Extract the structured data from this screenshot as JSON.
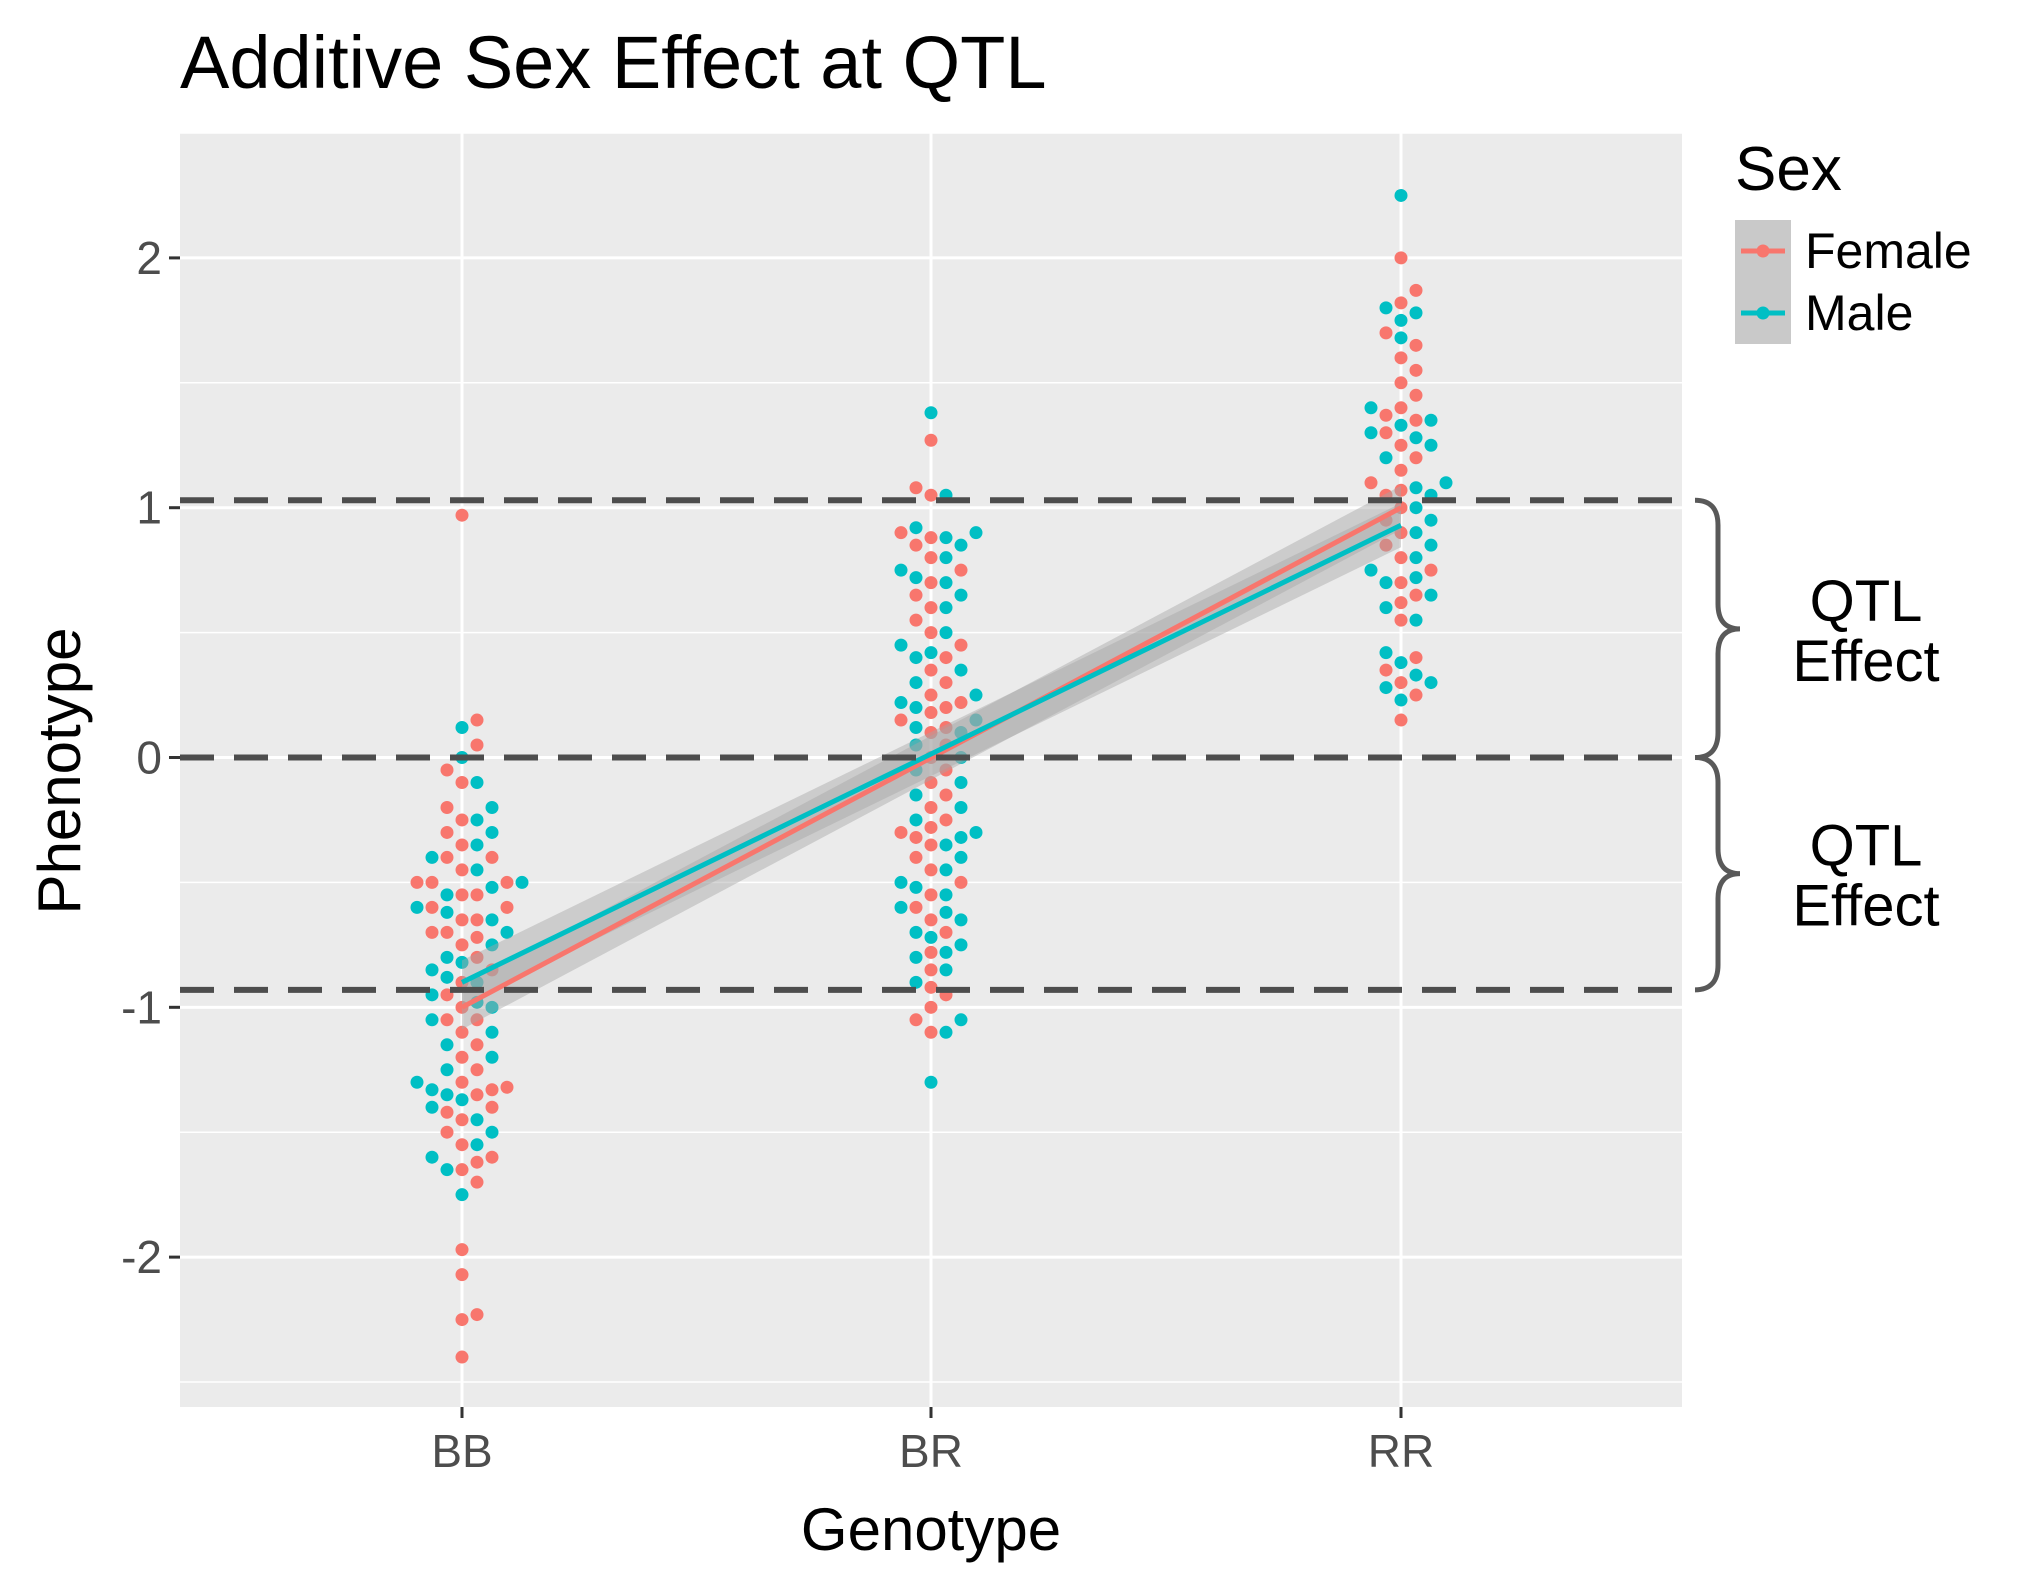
{
  "colors": {
    "female": "#F8766D",
    "male": "#00BFC4",
    "panel": "#EBEBEB",
    "grid": "#FFFFFF",
    "dashed": "#4D4D4D",
    "bracket": "#595959",
    "ci_band": "#A6A6A6"
  },
  "chart_data": {
    "type": "scatter",
    "title": "Additive Sex Effect at QTL",
    "xlabel": "Genotype",
    "ylabel": "Phenotype",
    "categories": [
      "BB",
      "BR",
      "RR"
    ],
    "ylim": [
      -2.6,
      2.5
    ],
    "yticks": [
      -2,
      -1,
      0,
      1,
      2
    ],
    "grid": true,
    "legend": {
      "title": "Sex",
      "placement": "right",
      "entries": [
        "Female",
        "Male"
      ]
    },
    "series": [
      {
        "name": "Female",
        "color_key": "female",
        "points": {
          "BB": [
            0.97,
            0.15,
            0.05,
            -0.05,
            -0.1,
            -0.2,
            -0.25,
            -0.3,
            -0.35,
            -0.4,
            -0.4,
            -0.45,
            -0.5,
            -0.5,
            -0.5,
            -0.55,
            -0.55,
            -0.6,
            -0.6,
            -0.65,
            -0.65,
            -0.7,
            -0.7,
            -0.72,
            -0.75,
            -0.8,
            -0.85,
            -0.9,
            -0.95,
            -1.0,
            -1.05,
            -1.05,
            -1.1,
            -1.15,
            -1.2,
            -1.25,
            -1.3,
            -1.32,
            -1.33,
            -1.35,
            -1.4,
            -1.42,
            -1.45,
            -1.5,
            -1.55,
            -1.6,
            -1.62,
            -1.65,
            -1.7,
            -1.97,
            -2.07,
            -2.23,
            -2.25,
            -2.4
          ],
          "BR": [
            1.27,
            1.08,
            1.05,
            0.9,
            0.88,
            0.85,
            0.8,
            0.75,
            0.7,
            0.65,
            0.6,
            0.55,
            0.5,
            0.45,
            0.4,
            0.35,
            0.3,
            0.25,
            0.22,
            0.2,
            0.18,
            0.15,
            0.12,
            0.1,
            0.05,
            0.0,
            -0.05,
            -0.1,
            -0.15,
            -0.2,
            -0.25,
            -0.28,
            -0.3,
            -0.32,
            -0.35,
            -0.4,
            -0.45,
            -0.5,
            -0.55,
            -0.6,
            -0.65,
            -0.7,
            -0.78,
            -0.85,
            -0.92,
            -0.95,
            -1.0,
            -1.05,
            -1.1
          ],
          "RR": [
            2.0,
            1.87,
            1.82,
            1.7,
            1.65,
            1.6,
            1.55,
            1.5,
            1.45,
            1.4,
            1.37,
            1.35,
            1.3,
            1.25,
            1.2,
            1.15,
            1.1,
            1.07,
            1.05,
            1.0,
            0.95,
            0.9,
            0.85,
            0.8,
            0.75,
            0.7,
            0.65,
            0.62,
            0.55,
            0.4,
            0.35,
            0.3,
            0.25,
            0.15
          ]
        }
      },
      {
        "name": "Male",
        "color_key": "male",
        "points": {
          "BB": [
            0.12,
            0.0,
            -0.1,
            -0.2,
            -0.25,
            -0.3,
            -0.35,
            -0.4,
            -0.45,
            -0.5,
            -0.52,
            -0.55,
            -0.6,
            -0.62,
            -0.65,
            -0.7,
            -0.75,
            -0.8,
            -0.82,
            -0.85,
            -0.88,
            -0.9,
            -0.95,
            -0.98,
            -1.0,
            -1.05,
            -1.1,
            -1.15,
            -1.2,
            -1.25,
            -1.3,
            -1.33,
            -1.35,
            -1.37,
            -1.4,
            -1.45,
            -1.5,
            -1.55,
            -1.6,
            -1.65,
            -1.75
          ],
          "BR": [
            1.38,
            1.05,
            0.92,
            0.9,
            0.88,
            0.85,
            0.8,
            0.75,
            0.72,
            0.7,
            0.65,
            0.6,
            0.5,
            0.45,
            0.42,
            0.4,
            0.35,
            0.3,
            0.25,
            0.22,
            0.2,
            0.15,
            0.12,
            0.1,
            0.05,
            0.0,
            -0.05,
            -0.1,
            -0.15,
            -0.2,
            -0.25,
            -0.3,
            -0.32,
            -0.35,
            -0.4,
            -0.45,
            -0.5,
            -0.52,
            -0.55,
            -0.6,
            -0.62,
            -0.65,
            -0.7,
            -0.72,
            -0.75,
            -0.78,
            -0.8,
            -0.85,
            -0.9,
            -1.05,
            -1.1,
            -1.3
          ],
          "RR": [
            2.25,
            1.8,
            1.78,
            1.75,
            1.68,
            1.4,
            1.35,
            1.33,
            1.3,
            1.28,
            1.25,
            1.2,
            1.1,
            1.08,
            1.05,
            1.0,
            0.95,
            0.9,
            0.85,
            0.8,
            0.75,
            0.72,
            0.7,
            0.65,
            0.6,
            0.55,
            0.42,
            0.38,
            0.33,
            0.3,
            0.28,
            0.23
          ]
        },
        "fit": {
          "BB": -0.9,
          "RR": 0.93
        }
      }
    ],
    "fits": {
      "Female": {
        "BB": -1.0,
        "RR": 1.0
      },
      "Male": {
        "BB": -0.9,
        "RR": 0.93
      }
    },
    "reference_lines": [
      1.03,
      0.0,
      -0.93
    ],
    "annotations": [
      {
        "text_lines": [
          "QTL",
          "Effect"
        ],
        "from": 0.0,
        "to": 1.03
      },
      {
        "text_lines": [
          "QTL",
          "Effect"
        ],
        "from": -0.93,
        "to": 0.0
      }
    ]
  }
}
